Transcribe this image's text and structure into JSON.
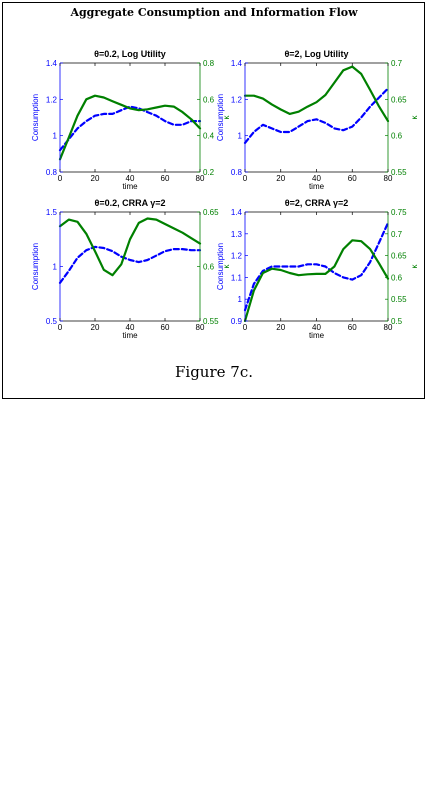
{
  "figure": {
    "title": "Aggregate Consumption and Information Flow",
    "caption": "Figure 7c."
  },
  "colors": {
    "consumption": "#0000ff",
    "kappa": "#008000",
    "axis": "#000000"
  },
  "chart_data": [
    {
      "type": "line",
      "title": "θ=0.2, Log Utility",
      "xlabel": "time",
      "ylabel_left": "Consumption",
      "ylabel_right": "κ",
      "xlim": [
        0,
        80
      ],
      "ylim_left": [
        0.8,
        1.4
      ],
      "ylim_right": [
        0.2,
        0.8
      ],
      "xticks": [
        0,
        20,
        40,
        60,
        80
      ],
      "yticks_left": [
        0.8,
        1,
        1.2,
        1.4
      ],
      "yticks_right": [
        0.2,
        0.4,
        0.6,
        0.8
      ],
      "grid": false,
      "series": [
        {
          "axis": "left",
          "style": "dashed",
          "x": [
            0,
            5,
            10,
            15,
            20,
            25,
            30,
            35,
            40,
            45,
            50,
            55,
            60,
            65,
            70,
            75,
            80
          ],
          "y": [
            0.92,
            0.98,
            1.04,
            1.08,
            1.11,
            1.12,
            1.12,
            1.14,
            1.16,
            1.15,
            1.13,
            1.11,
            1.08,
            1.06,
            1.06,
            1.08,
            1.08
          ]
        },
        {
          "axis": "right",
          "style": "solid",
          "x": [
            0,
            5,
            10,
            15,
            20,
            25,
            30,
            35,
            40,
            45,
            50,
            55,
            60,
            65,
            70,
            75,
            80
          ],
          "y": [
            0.27,
            0.39,
            0.51,
            0.6,
            0.62,
            0.61,
            0.59,
            0.57,
            0.55,
            0.54,
            0.545,
            0.555,
            0.565,
            0.56,
            0.53,
            0.49,
            0.44
          ]
        }
      ]
    },
    {
      "type": "line",
      "title": "θ=2, Log Utility",
      "xlabel": "time",
      "ylabel_left": "Consumption",
      "ylabel_right": "κ",
      "xlim": [
        0,
        80
      ],
      "ylim_left": [
        0.8,
        1.4
      ],
      "ylim_right": [
        0.55,
        0.7
      ],
      "xticks": [
        0,
        20,
        40,
        60,
        80
      ],
      "yticks_left": [
        0.8,
        1,
        1.2,
        1.4
      ],
      "yticks_right": [
        0.55,
        0.6,
        0.65,
        0.7
      ],
      "grid": false,
      "series": [
        {
          "axis": "left",
          "style": "dashed",
          "x": [
            0,
            5,
            10,
            15,
            20,
            25,
            30,
            35,
            40,
            45,
            50,
            55,
            60,
            65,
            70,
            75,
            80
          ],
          "y": [
            0.96,
            1.02,
            1.06,
            1.04,
            1.02,
            1.02,
            1.05,
            1.08,
            1.09,
            1.07,
            1.04,
            1.03,
            1.05,
            1.1,
            1.16,
            1.21,
            1.26
          ]
        },
        {
          "axis": "right",
          "style": "solid",
          "x": [
            0,
            5,
            10,
            15,
            20,
            25,
            30,
            35,
            40,
            45,
            50,
            55,
            60,
            65,
            70,
            75,
            80
          ],
          "y": [
            0.655,
            0.655,
            0.651,
            0.643,
            0.636,
            0.63,
            0.633,
            0.64,
            0.646,
            0.656,
            0.673,
            0.69,
            0.695,
            0.685,
            0.663,
            0.64,
            0.62
          ]
        }
      ]
    },
    {
      "type": "line",
      "title": "θ=0.2, CRRA γ=2",
      "xlabel": "time",
      "ylabel_left": "Consumption",
      "ylabel_right": "κ",
      "xlim": [
        0,
        80
      ],
      "ylim_left": [
        0.5,
        1.5
      ],
      "ylim_right": [
        0.55,
        0.65
      ],
      "xticks": [
        0,
        20,
        40,
        60,
        80
      ],
      "yticks_left": [
        0.5,
        1,
        1.5
      ],
      "yticks_right": [
        0.55,
        0.6,
        0.65
      ],
      "grid": false,
      "series": [
        {
          "axis": "left",
          "style": "dashed",
          "x": [
            0,
            5,
            10,
            15,
            20,
            25,
            30,
            35,
            40,
            45,
            50,
            55,
            60,
            65,
            70,
            75,
            80
          ],
          "y": [
            0.85,
            0.96,
            1.08,
            1.15,
            1.18,
            1.17,
            1.14,
            1.09,
            1.06,
            1.04,
            1.06,
            1.1,
            1.14,
            1.16,
            1.16,
            1.15,
            1.15
          ]
        },
        {
          "axis": "right",
          "style": "solid",
          "x": [
            0,
            5,
            10,
            15,
            20,
            25,
            30,
            35,
            40,
            45,
            50,
            55,
            60,
            65,
            70,
            75,
            80
          ],
          "y": [
            0.637,
            0.643,
            0.641,
            0.63,
            0.614,
            0.597,
            0.592,
            0.602,
            0.625,
            0.64,
            0.644,
            0.643,
            0.639,
            0.635,
            0.631,
            0.626,
            0.621
          ]
        }
      ]
    },
    {
      "type": "line",
      "title": "θ=2, CRRA γ=2",
      "xlabel": "time",
      "ylabel_left": "Consumption",
      "ylabel_right": "κ",
      "xlim": [
        0,
        80
      ],
      "ylim_left": [
        0.9,
        1.4
      ],
      "ylim_right": [
        0.5,
        0.75
      ],
      "xticks": [
        0,
        20,
        40,
        60,
        80
      ],
      "yticks_left": [
        0.9,
        1,
        1.1,
        1.2,
        1.3,
        1.4
      ],
      "yticks_right": [
        0.5,
        0.55,
        0.6,
        0.65,
        0.7,
        0.75
      ],
      "grid": false,
      "series": [
        {
          "axis": "left",
          "style": "dashed",
          "x": [
            0,
            5,
            10,
            15,
            20,
            25,
            30,
            35,
            40,
            45,
            50,
            55,
            60,
            65,
            70,
            75,
            80
          ],
          "y": [
            0.95,
            1.07,
            1.13,
            1.15,
            1.15,
            1.15,
            1.15,
            1.16,
            1.16,
            1.15,
            1.12,
            1.1,
            1.09,
            1.11,
            1.17,
            1.26,
            1.35
          ]
        },
        {
          "axis": "right",
          "style": "solid",
          "x": [
            0,
            5,
            10,
            15,
            20,
            25,
            30,
            35,
            40,
            45,
            50,
            55,
            60,
            65,
            70,
            75,
            80
          ],
          "y": [
            0.5,
            0.57,
            0.61,
            0.62,
            0.617,
            0.61,
            0.605,
            0.607,
            0.608,
            0.608,
            0.625,
            0.665,
            0.685,
            0.683,
            0.665,
            0.632,
            0.597
          ]
        }
      ]
    }
  ]
}
